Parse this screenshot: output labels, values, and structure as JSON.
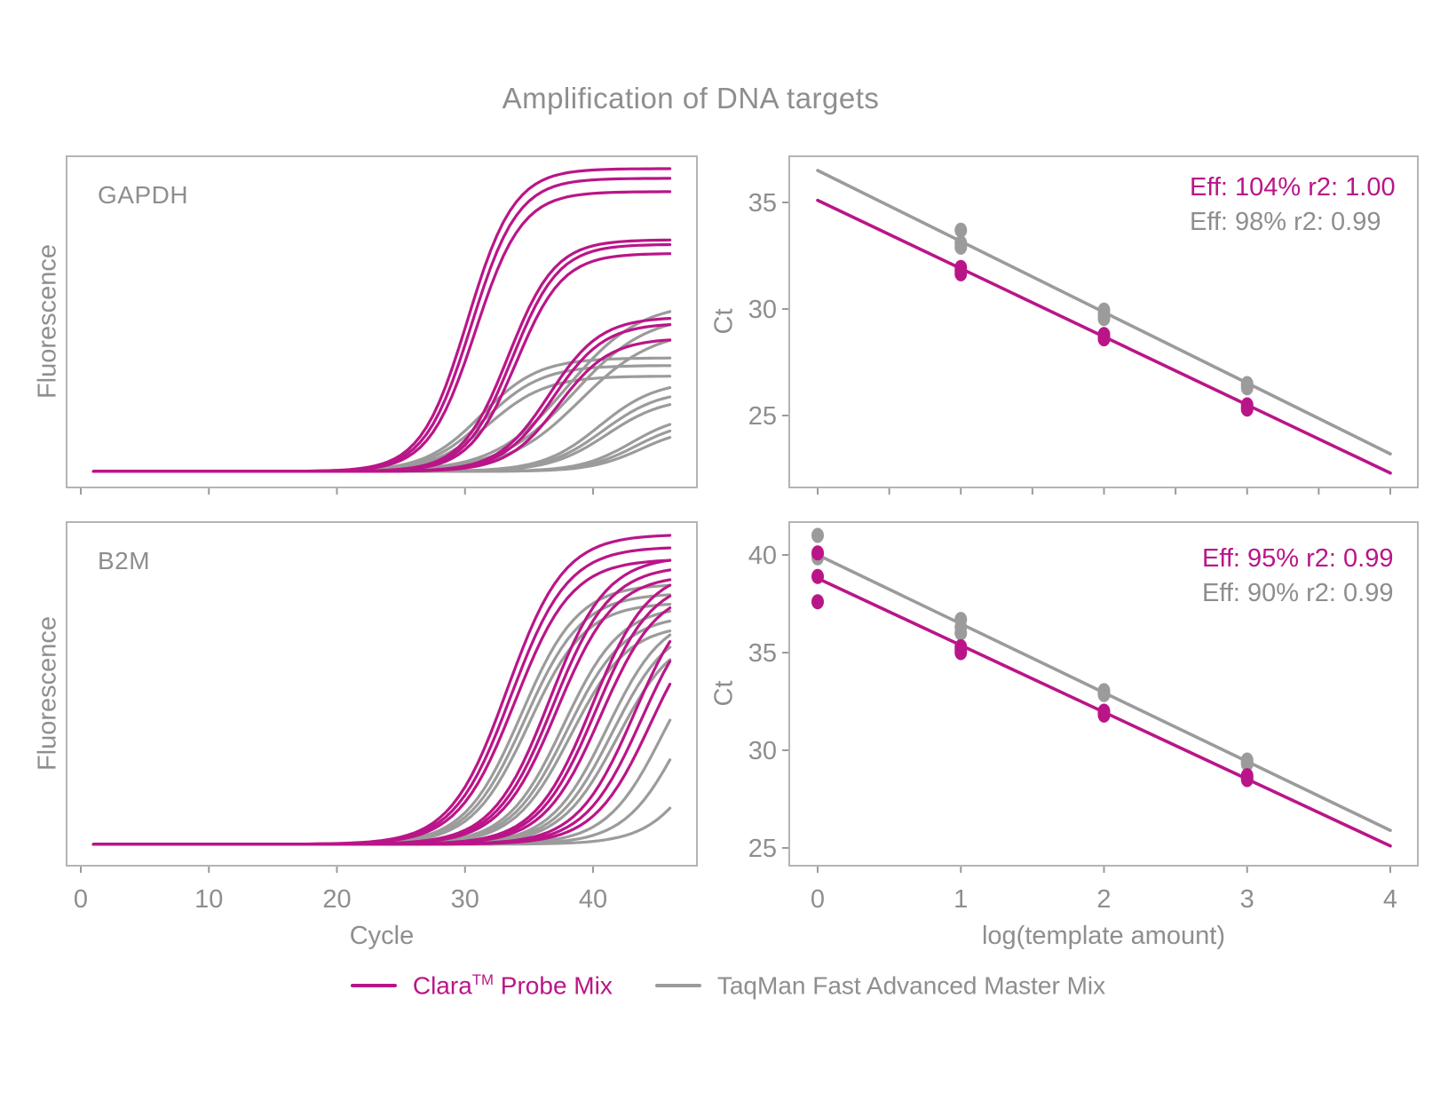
{
  "title": "Amplification of DNA targets",
  "colors": {
    "magenta": "#ba1588",
    "gray": "#9b9b9b",
    "text": "#8e8e8e",
    "border": "#b4b4b4"
  },
  "legend": {
    "items": [
      {
        "id": "clara",
        "label_pre": "Clara",
        "label_sup": "TM",
        "label_post": " Probe Mix",
        "color_key": "magenta"
      },
      {
        "id": "taqman",
        "label_pre": "TaqMan Fast Advanced Master Mix",
        "label_sup": "",
        "label_post": "",
        "color_key": "gray"
      }
    ]
  },
  "chart_data": [
    {
      "id": "gapdh-amplification",
      "type": "line",
      "panel_label": "GAPDH",
      "xlabel": "Cycle",
      "ylabel": "Fluorescence",
      "x_ticks": [
        0,
        10,
        20,
        30,
        40
      ],
      "show_x_tick_labels": false,
      "x_range": [
        1,
        46
      ],
      "curve_model": "fluorescence = plateau / (1 + exp(-k * (cycle - midpoint)))",
      "k": 0.55,
      "curves": [
        {
          "mix": "taqman",
          "midpoint": 31.3,
          "plateau": 0.375,
          "k": 0.45
        },
        {
          "mix": "taqman",
          "midpoint": 31.6,
          "plateau": 0.35,
          "k": 0.45
        },
        {
          "mix": "taqman",
          "midpoint": 31.9,
          "plateau": 0.315,
          "k": 0.45
        },
        {
          "mix": "taqman",
          "midpoint": 38.0,
          "plateau": 0.56,
          "k": 0.35
        },
        {
          "mix": "taqman",
          "midpoint": 38.5,
          "plateau": 0.52,
          "k": 0.35
        },
        {
          "mix": "taqman",
          "midpoint": 39.0,
          "plateau": 0.47,
          "k": 0.35
        },
        {
          "mix": "taqman",
          "midpoint": 40.5,
          "plateau": 0.3,
          "k": 0.45
        },
        {
          "mix": "taqman",
          "midpoint": 40.8,
          "plateau": 0.27,
          "k": 0.45
        },
        {
          "mix": "taqman",
          "midpoint": 41.1,
          "plateau": 0.245,
          "k": 0.45
        },
        {
          "mix": "taqman",
          "midpoint": 43.0,
          "plateau": 0.19,
          "k": 0.5
        },
        {
          "mix": "taqman",
          "midpoint": 43.4,
          "plateau": 0.17,
          "k": 0.5
        },
        {
          "mix": "taqman",
          "midpoint": 43.8,
          "plateau": 0.15,
          "k": 0.5
        },
        {
          "mix": "clara",
          "midpoint": 30.2,
          "plateau": 1.0
        },
        {
          "mix": "clara",
          "midpoint": 30.5,
          "plateau": 0.968
        },
        {
          "mix": "clara",
          "midpoint": 30.8,
          "plateau": 0.924
        },
        {
          "mix": "clara",
          "midpoint": 33.4,
          "plateau": 0.765
        },
        {
          "mix": "clara",
          "midpoint": 33.7,
          "plateau": 0.75
        },
        {
          "mix": "clara",
          "midpoint": 34.0,
          "plateau": 0.72
        },
        {
          "mix": "clara",
          "midpoint": 36.6,
          "plateau": 0.51,
          "k": 0.5
        },
        {
          "mix": "clara",
          "midpoint": 36.9,
          "plateau": 0.49,
          "k": 0.5
        },
        {
          "mix": "clara",
          "midpoint": 37.3,
          "plateau": 0.44,
          "k": 0.5
        }
      ]
    },
    {
      "id": "gapdh-standard-curve",
      "type": "scatter",
      "ylabel": "Ct",
      "y_ticks": [
        25,
        30,
        35
      ],
      "ylim": [
        21.6,
        37.2
      ],
      "xlim": [
        -0.2,
        4.2
      ],
      "x_ticks": [
        0,
        0.5,
        1,
        1.5,
        2,
        2.5,
        3,
        3.5,
        4
      ],
      "show_x_tick_labels": false,
      "annotations": [
        {
          "text": "Eff: 104% r2: 1.00",
          "mix": "clara"
        },
        {
          "text": "Eff: 98% r2: 0.99",
          "mix": "taqman"
        }
      ],
      "series": [
        {
          "mix": "taqman",
          "line": {
            "x": [
              0,
              4
            ],
            "ct": [
              36.5,
              23.2
            ]
          },
          "points": [
            {
              "x": 1,
              "ct": [
                33.7,
                33.1,
                32.9
              ]
            },
            {
              "x": 2,
              "ct": [
                29.95,
                29.75,
                29.55
              ]
            },
            {
              "x": 3,
              "ct": [
                26.5,
                26.4,
                26.3
              ]
            }
          ]
        },
        {
          "mix": "clara",
          "line": {
            "x": [
              0,
              4
            ],
            "ct": [
              35.1,
              22.3
            ]
          },
          "points": [
            {
              "x": 1,
              "ct": [
                31.95,
                31.8,
                31.65
              ]
            },
            {
              "x": 2,
              "ct": [
                28.8,
                28.7,
                28.6
              ]
            },
            {
              "x": 3,
              "ct": [
                25.5,
                25.4,
                25.3
              ]
            }
          ]
        }
      ]
    },
    {
      "id": "b2m-amplification",
      "type": "line",
      "panel_label": "B2M",
      "xlabel": "Cycle",
      "ylabel": "Fluorescence",
      "x_ticks": [
        0,
        10,
        20,
        30,
        40
      ],
      "show_x_tick_labels": true,
      "x_range": [
        1,
        46
      ],
      "curve_model": "fluorescence = plateau / (1 + exp(-k * (cycle - midpoint)))",
      "k": 0.45,
      "curves": [
        {
          "mix": "taqman",
          "midpoint": 34.4,
          "plateau": 0.84
        },
        {
          "mix": "taqman",
          "midpoint": 34.7,
          "plateau": 0.81
        },
        {
          "mix": "taqman",
          "midpoint": 35.0,
          "plateau": 0.78
        },
        {
          "mix": "taqman",
          "midpoint": 37.7,
          "plateau": 0.77
        },
        {
          "mix": "taqman",
          "midpoint": 38.0,
          "plateau": 0.74
        },
        {
          "mix": "taqman",
          "midpoint": 38.3,
          "plateau": 0.71
        },
        {
          "mix": "taqman",
          "midpoint": 41.1,
          "plateau": 0.75
        },
        {
          "mix": "taqman",
          "midpoint": 41.5,
          "plateau": 0.72
        },
        {
          "mix": "taqman",
          "midpoint": 41.9,
          "plateau": 0.69
        },
        {
          "mix": "taqman",
          "midpoint": 45.5,
          "plateau": 0.72
        },
        {
          "mix": "taqman",
          "midpoint": 47.0,
          "plateau": 0.7
        },
        {
          "mix": "taqman",
          "midpoint": 49.5,
          "plateau": 0.68
        },
        {
          "mix": "clara",
          "midpoint": 33.3,
          "plateau": 1.0
        },
        {
          "mix": "clara",
          "midpoint": 33.6,
          "plateau": 0.96
        },
        {
          "mix": "clara",
          "midpoint": 33.9,
          "plateau": 0.92
        },
        {
          "mix": "clara",
          "midpoint": 36.6,
          "plateau": 0.93
        },
        {
          "mix": "clara",
          "midpoint": 36.9,
          "plateau": 0.9
        },
        {
          "mix": "clara",
          "midpoint": 37.2,
          "plateau": 0.87
        },
        {
          "mix": "clara",
          "midpoint": 39.9,
          "plateau": 0.89
        },
        {
          "mix": "clara",
          "midpoint": 40.2,
          "plateau": 0.86
        },
        {
          "mix": "clara",
          "midpoint": 40.6,
          "plateau": 0.83
        },
        {
          "mix": "clara",
          "midpoint": 43.2,
          "plateau": 0.84
        },
        {
          "mix": "clara",
          "midpoint": 43.8,
          "plateau": 0.81
        },
        {
          "mix": "clara",
          "midpoint": 44.5,
          "plateau": 0.78
        }
      ]
    },
    {
      "id": "b2m-standard-curve",
      "type": "scatter",
      "xlabel": "log(template amount)",
      "ylabel": "Ct",
      "y_ticks": [
        25,
        30,
        35,
        40
      ],
      "ylim": [
        23.9,
        41.6
      ],
      "xlim": [
        -0.2,
        4.2
      ],
      "x_ticks": [
        0,
        1,
        2,
        3,
        4
      ],
      "show_x_tick_labels": true,
      "annotations": [
        {
          "text": "Eff: 95% r2: 0.99",
          "mix": "clara"
        },
        {
          "text": "Eff: 90% r2: 0.99",
          "mix": "taqman"
        }
      ],
      "series": [
        {
          "mix": "taqman",
          "line": {
            "x": [
              0,
              4
            ],
            "ct": [
              40.0,
              25.9
            ]
          },
          "points": [
            {
              "x": 0,
              "ct": [
                41.0,
                40.0,
                39.85
              ]
            },
            {
              "x": 1,
              "ct": [
                36.7,
                36.3,
                36.0
              ]
            },
            {
              "x": 2,
              "ct": [
                33.05,
                32.95,
                32.85
              ]
            },
            {
              "x": 3,
              "ct": [
                29.5,
                29.4,
                29.3
              ]
            }
          ]
        },
        {
          "mix": "clara",
          "line": {
            "x": [
              0,
              4
            ],
            "ct": [
              38.8,
              25.1
            ]
          },
          "points": [
            {
              "x": 0,
              "ct": [
                40.1,
                38.9,
                37.6
              ]
            },
            {
              "x": 1,
              "ct": [
                35.3,
                35.15,
                35.0
              ]
            },
            {
              "x": 2,
              "ct": [
                32.0,
                31.9,
                31.8
              ]
            },
            {
              "x": 3,
              "ct": [
                28.7,
                28.6,
                28.5
              ]
            }
          ]
        }
      ]
    }
  ]
}
